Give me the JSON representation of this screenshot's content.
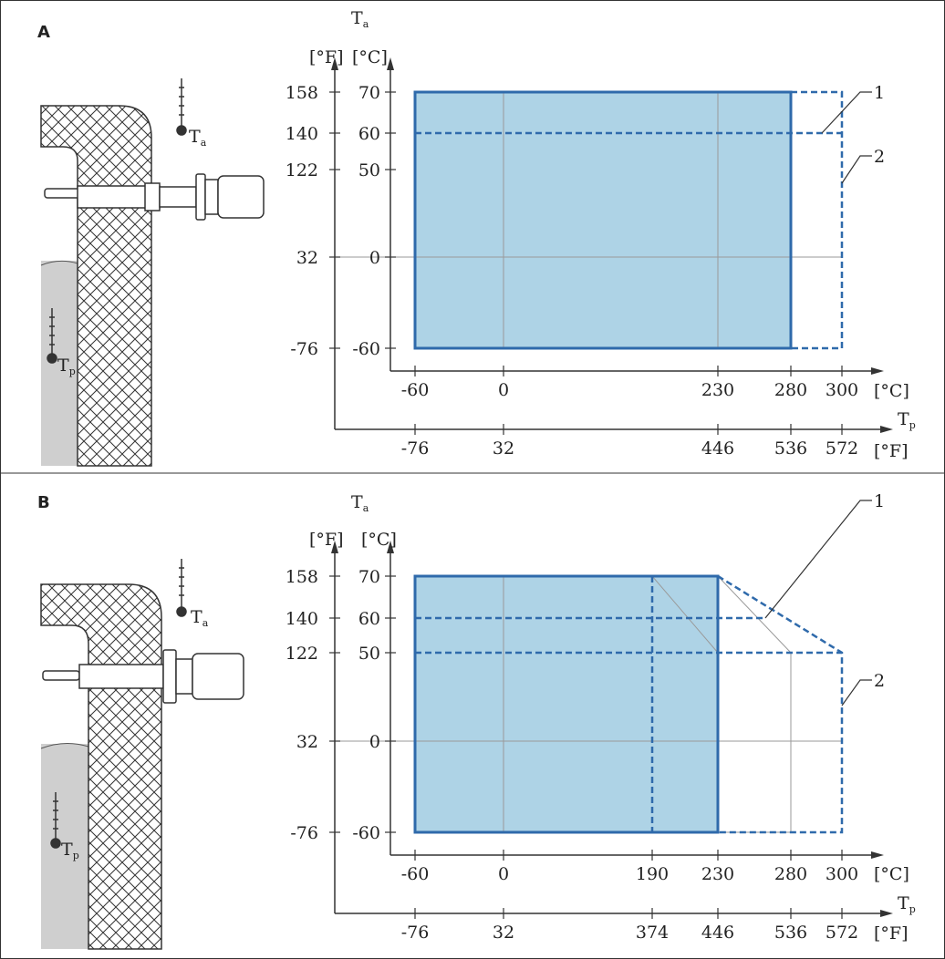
{
  "panels": [
    {
      "letter": "A",
      "ta_label": "T",
      "ta_sub": "a",
      "tp_label": "T",
      "tp_sub": "p",
      "unit_f": "[°F]",
      "unit_c": "[°C]",
      "y_ticks_f": [
        "158",
        "140",
        "122",
        "32",
        "-76"
      ],
      "y_ticks_c": [
        "70",
        "60",
        "50",
        "0",
        "-60"
      ],
      "x_ticks_c": [
        "-60",
        "0",
        "230",
        "280",
        "300"
      ],
      "x_ticks_f": [
        "-76",
        "32",
        "446",
        "536",
        "572"
      ],
      "callouts": [
        "1",
        "2"
      ],
      "sketch_ta": "T",
      "sketch_ta_sub": "a",
      "sketch_tp": "T",
      "sketch_tp_sub": "p"
    },
    {
      "letter": "B",
      "ta_label": "T",
      "ta_sub": "a",
      "tp_label": "T",
      "tp_sub": "p",
      "unit_f": "[°F]",
      "unit_c": "[°C]",
      "y_ticks_f": [
        "158",
        "140",
        "122",
        "32",
        "-76"
      ],
      "y_ticks_c": [
        "70",
        "60",
        "50",
        "0",
        "-60"
      ],
      "x_ticks_c": [
        "-60",
        "0",
        "190",
        "230",
        "280",
        "300"
      ],
      "x_ticks_f": [
        "-76",
        "32",
        "374",
        "446",
        "536",
        "572"
      ],
      "callouts": [
        "1",
        "2"
      ],
      "sketch_ta": "T",
      "sketch_ta_sub": "a",
      "sketch_tp": "T",
      "sketch_tp_sub": "p"
    }
  ],
  "colors": {
    "fill": "#aed3e6",
    "line": "#2f6aab",
    "axis": "#333333",
    "grid": "#9a9a9a",
    "liquid": "#cfcfcf"
  }
}
